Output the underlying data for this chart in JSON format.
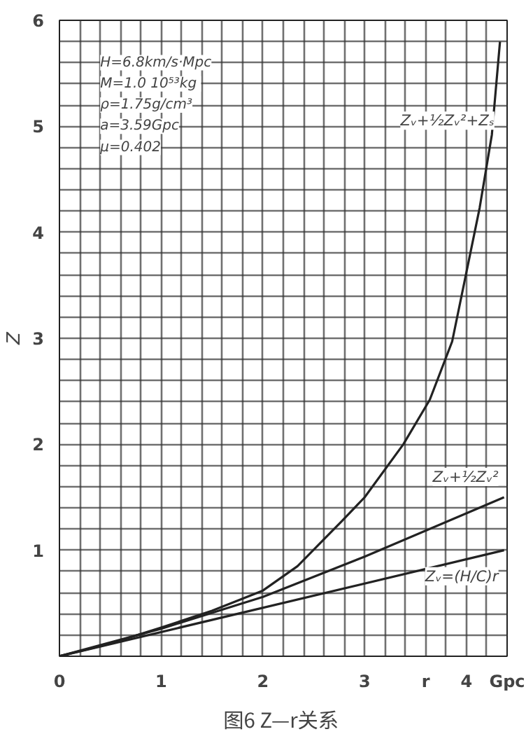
{
  "chart_data": {
    "type": "line",
    "title": "图6  Z—r关系",
    "ylabel": "Z",
    "xlim": [
      0,
      4.4
    ],
    "ylim": [
      0,
      6
    ],
    "xticks": [
      0,
      {
        "value": 0.2,
        "label": null
      },
      {
        "value": 0.4,
        "label": null
      },
      {
        "value": 0.6,
        "label": null
      },
      {
        "value": 0.8,
        "label": null
      },
      1,
      {
        "value": 1.2,
        "label": null
      },
      {
        "value": 1.4,
        "label": null
      },
      {
        "value": 1.6,
        "label": null
      },
      {
        "value": 1.8,
        "label": null
      },
      2,
      {
        "value": 2.2,
        "label": null
      },
      {
        "value": 2.4,
        "label": null
      },
      {
        "value": 2.6,
        "label": null
      },
      {
        "value": 2.8,
        "label": null
      },
      3,
      {
        "value": 3.2,
        "label": null
      },
      {
        "value": 3.4,
        "label": null
      },
      {
        "value": 3.6,
        "label": "r"
      },
      {
        "value": 3.8,
        "label": null
      },
      4,
      {
        "value": 4.2,
        "label": null
      },
      {
        "value": 4.4,
        "label": "Gpc"
      }
    ],
    "yticks": [
      {
        "value": 0,
        "label": null
      },
      {
        "value": 0.2,
        "label": null
      },
      {
        "value": 0.4,
        "label": null
      },
      {
        "value": 0.6,
        "label": null
      },
      {
        "value": 0.8,
        "label": null
      },
      1,
      {
        "value": 1.2,
        "label": null
      },
      {
        "value": 1.4,
        "label": null
      },
      {
        "value": 1.6,
        "label": null
      },
      {
        "value": 1.8,
        "label": null
      },
      2,
      {
        "value": 2.2,
        "label": null
      },
      {
        "value": 2.4,
        "label": null
      },
      {
        "value": 2.6,
        "label": null
      },
      {
        "value": 2.8,
        "label": null
      },
      3,
      {
        "value": 3.2,
        "label": null
      },
      {
        "value": 3.4,
        "label": null
      },
      {
        "value": 3.6,
        "label": null
      },
      {
        "value": 3.8,
        "label": null
      },
      4,
      {
        "value": 4.2,
        "label": null
      },
      {
        "value": 4.4,
        "label": null
      },
      {
        "value": 4.6,
        "label": null
      },
      {
        "value": 4.8,
        "label": null
      },
      5,
      {
        "value": 5.2,
        "label": null
      },
      {
        "value": 5.4,
        "label": null
      },
      {
        "value": 5.6,
        "label": null
      },
      {
        "value": 5.8,
        "label": null
      },
      6
    ],
    "grid": true,
    "marker": "none",
    "line_style": "solid",
    "series": [
      {
        "name": "Zᵥ+½Zᵥ²+Zₛ",
        "color": "#222222",
        "x": [
          0,
          0.5,
          1,
          1.5,
          2,
          2.34,
          2.77,
          3,
          3.38,
          3.64,
          3.86,
          4.13,
          4.25,
          4.33
        ],
        "values": [
          0,
          0.12,
          0.27,
          0.43,
          0.62,
          0.85,
          1.27,
          1.5,
          2.0,
          2.42,
          2.97,
          4.23,
          4.92,
          5.8
        ]
      },
      {
        "name": "Zᵥ+½Zᵥ²",
        "color": "#222222",
        "x": [
          0,
          1,
          2,
          3,
          4.37
        ],
        "values": [
          0,
          0.26,
          0.56,
          0.94,
          1.5
        ]
      },
      {
        "name": "Zᵥ=(H/C)r",
        "color": "#222222",
        "x": [
          0,
          4.37
        ],
        "values": [
          0,
          1.0
        ]
      }
    ],
    "annotations": [
      "H=6.8km/s·Mpc",
      "M=1.0  10⁵³kg",
      "ρ=1.75g/cm³",
      "a=3.59Gpc",
      "μ=0.402"
    ]
  }
}
